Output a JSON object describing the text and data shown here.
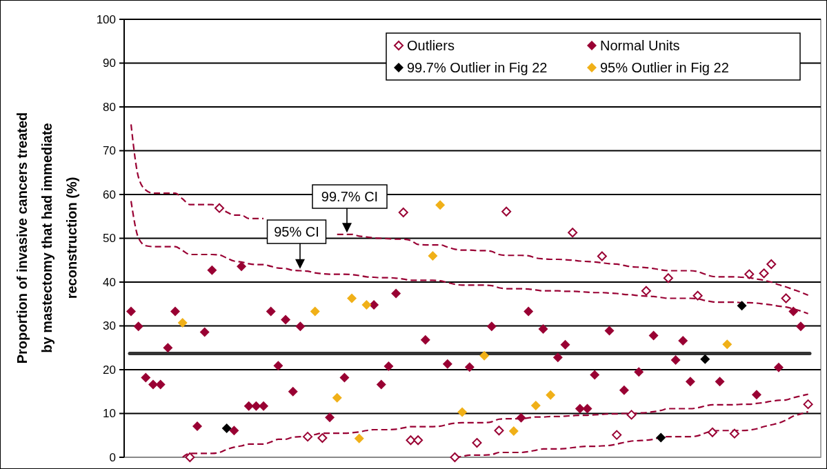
{
  "chart_data": {
    "type": "scatter",
    "ylabel": "Proportion of invasive cancers treated\nby mastectomy that had immediate\nreconstruction (%)",
    "categories": [
      null,
      null,
      null,
      null,
      null,
      null,
      null,
      null,
      null,
      null,
      null,
      null,
      null,
      null,
      null,
      null,
      null,
      null,
      null,
      null,
      null,
      null,
      null,
      null,
      null,
      null,
      null,
      null,
      null,
      null,
      null,
      null,
      null,
      null,
      null,
      null,
      null,
      null,
      null,
      null,
      null,
      null,
      null,
      null,
      null,
      null,
      null,
      null,
      null,
      null,
      null,
      null,
      null,
      null,
      null,
      null,
      null,
      null,
      null,
      null,
      null,
      null,
      null,
      null,
      null,
      null,
      null,
      null,
      null,
      null,
      null,
      null,
      null,
      null,
      null,
      null,
      null,
      null,
      null,
      null,
      null,
      null,
      null,
      null,
      null,
      null,
      null,
      null,
      null,
      null,
      null,
      null,
      null
    ],
    "ylim": [
      0,
      100
    ],
    "yticks": [
      0,
      10,
      20,
      30,
      40,
      50,
      60,
      70,
      80,
      90,
      100
    ],
    "grid": "y",
    "tick_labels": "y",
    "legend": "top right",
    "marker": "diamond",
    "series": [
      {
        "type": "line",
        "color": "#990033",
        "line_style": "dashed",
        "marker": "none",
        "values": [
          76,
          64,
          61,
          60.3,
          60.3,
          60.3,
          60.3,
          59,
          57.7,
          57.7,
          57.7,
          57.7,
          57,
          56,
          55.3,
          55.3,
          54.5,
          54.5,
          54.5,
          null,
          null,
          null,
          null,
          null,
          null,
          null,
          null,
          null,
          50.9,
          50.9,
          50.9,
          50.5,
          50.3,
          50.1,
          50,
          49.9,
          49.8,
          49.8,
          49.5,
          48.6,
          48.5,
          48.5,
          48.5,
          48,
          47.5,
          47.3,
          47.3,
          47.2,
          47.2,
          47,
          46.3,
          46.1,
          46.1,
          46.1,
          46,
          45.5,
          45.3,
          45.2,
          45.2,
          45.1,
          45,
          44.8,
          44.7,
          44.6,
          44.4,
          44.2,
          44.1,
          43.8,
          43.5,
          43.4,
          43.3,
          43.1,
          42.8,
          42.6,
          42.6,
          42.6,
          42.6,
          42.4,
          41.8,
          41.3,
          41.2,
          41.2,
          41.2,
          41.1,
          41,
          40.7,
          40.4,
          40,
          39.4,
          38.9,
          38.3,
          37.7,
          37
        ]
      },
      {
        "type": "line",
        "color": "#990033",
        "line_style": "dashed",
        "marker": "none",
        "values": [
          58.5,
          50.1,
          48.3,
          48.1,
          48.1,
          48.1,
          48.1,
          47.2,
          46.3,
          46.3,
          46.3,
          46.3,
          46.2,
          45.5,
          44.8,
          44.6,
          44.2,
          44,
          44,
          43.6,
          43.2,
          43.1,
          42.7,
          42.6,
          42.5,
          42.1,
          41.9,
          41.8,
          41.8,
          41.8,
          41.7,
          41.5,
          41.2,
          41.1,
          41,
          41,
          40.9,
          40.7,
          40.4,
          40.4,
          40.4,
          40.4,
          40.3,
          39.9,
          39.5,
          39.3,
          39.3,
          39.3,
          39.3,
          39.2,
          38.7,
          38.5,
          38.5,
          38.5,
          38.4,
          38.2,
          38,
          38,
          38,
          37.9,
          37.9,
          37.8,
          37.7,
          37.6,
          37.6,
          37.5,
          37.4,
          37.2,
          37.1,
          36.9,
          36.8,
          36.7,
          36.5,
          36.3,
          36.3,
          36.3,
          36.3,
          36.2,
          35.8,
          35.5,
          35.4,
          35.4,
          35.4,
          35.3,
          35.3,
          35.2,
          35,
          34.8,
          34.5,
          34.3,
          33.9,
          33.4,
          32.8
        ]
      },
      {
        "type": "line",
        "color": "#990033",
        "line_style": "dashed",
        "marker": "none",
        "values": [
          null,
          null,
          null,
          null,
          null,
          null,
          null,
          0,
          0.9,
          0.9,
          0.9,
          0.9,
          1.1,
          1.8,
          2.3,
          2.6,
          3,
          3,
          3,
          3.5,
          4.1,
          4.1,
          4.6,
          4.7,
          4.8,
          5.2,
          5.5,
          5.5,
          5.5,
          5.5,
          5.6,
          5.8,
          6.1,
          6.3,
          6.3,
          6.3,
          6.4,
          6.7,
          7,
          7,
          7,
          7,
          7.1,
          7.5,
          7.8,
          7.9,
          7.9,
          7.9,
          7.9,
          8.1,
          8.7,
          8.8,
          8.8,
          8.8,
          9,
          9.2,
          9.2,
          9.3,
          9.3,
          9.4,
          9.5,
          9.6,
          9.6,
          9.7,
          9.8,
          9.9,
          9.9,
          10,
          10,
          10.1,
          10.2,
          10.4,
          10.7,
          11.1,
          11.1,
          11.1,
          11.1,
          11.3,
          11.7,
          12,
          12,
          12,
          12,
          12.1,
          12.1,
          12.3,
          12.5,
          12.8,
          13,
          13.1,
          13.6,
          14,
          14.4
        ]
      },
      {
        "type": "line",
        "color": "#990033",
        "line_style": "dashed",
        "marker": "none",
        "values": [
          null,
          null,
          null,
          null,
          null,
          null,
          null,
          null,
          null,
          null,
          null,
          null,
          null,
          null,
          null,
          null,
          null,
          null,
          null,
          null,
          null,
          null,
          null,
          null,
          null,
          null,
          null,
          null,
          null,
          null,
          null,
          null,
          null,
          null,
          null,
          null,
          null,
          null,
          null,
          null,
          null,
          null,
          null,
          null,
          0,
          0.2,
          0.5,
          0.5,
          0.5,
          0.6,
          1.1,
          1.1,
          1.1,
          1.1,
          1.3,
          1.6,
          1.9,
          1.9,
          1.9,
          2,
          2.2,
          2.4,
          2.5,
          2.5,
          2.6,
          2.7,
          3,
          3.4,
          3.7,
          3.8,
          3.9,
          4.1,
          4.6,
          4.7,
          4.7,
          4.7,
          4.7,
          4.9,
          5.5,
          6,
          6.1,
          6.1,
          6.1,
          6.1,
          6.2,
          6.5,
          7,
          7.4,
          7.8,
          8.5,
          9.4,
          9.9,
          10.4
        ]
      },
      {
        "name": "Outliers",
        "color": "#990033",
        "marker": "diamond-open",
        "values": [
          null,
          null,
          null,
          null,
          null,
          null,
          null,
          null,
          0,
          null,
          null,
          null,
          56.9,
          null,
          null,
          null,
          null,
          null,
          null,
          null,
          null,
          null,
          null,
          null,
          4.7,
          null,
          4.4,
          null,
          null,
          null,
          null,
          null,
          null,
          null,
          null,
          null,
          null,
          55.9,
          3.9,
          3.9,
          null,
          null,
          null,
          null,
          0,
          null,
          null,
          3.3,
          null,
          null,
          6.1,
          56.1,
          null,
          null,
          null,
          null,
          null,
          null,
          null,
          null,
          51.3,
          null,
          null,
          null,
          45.9,
          null,
          5.1,
          null,
          9.7,
          null,
          38,
          null,
          null,
          40.9,
          null,
          null,
          null,
          36.9,
          null,
          5.7,
          null,
          null,
          5.4,
          null,
          41.8,
          null,
          42,
          44.1,
          null,
          36.3,
          null,
          null,
          12.1
        ]
      },
      {
        "name": "Normal Units",
        "color": "#990033",
        "values": [
          33.3,
          29.9,
          18.2,
          16.6,
          16.6,
          25,
          33.3,
          null,
          null,
          7.1,
          28.6,
          42.7,
          null,
          null,
          6.1,
          43.6,
          11.7,
          11.7,
          11.7,
          33.3,
          20.9,
          31.4,
          15,
          29.9,
          null,
          null,
          null,
          9.1,
          null,
          18.2,
          null,
          null,
          null,
          34.8,
          16.6,
          20.8,
          37.4,
          null,
          null,
          null,
          26.8,
          null,
          null,
          21.3,
          null,
          null,
          20.6,
          null,
          null,
          29.9,
          null,
          null,
          null,
          9,
          33.3,
          null,
          29.3,
          null,
          22.8,
          25.7,
          null,
          11.1,
          11.1,
          18.8,
          null,
          28.9,
          null,
          15.3,
          null,
          19.5,
          null,
          27.8,
          null,
          null,
          22.2,
          26.6,
          17.3,
          null,
          null,
          null,
          17.3,
          null,
          null,
          null,
          null,
          14.3,
          null,
          null,
          20.5,
          null,
          33.3,
          29.9,
          null
        ]
      },
      {
        "name": "99.7% Outlier in Fig 22",
        "color": "#000000",
        "values": [
          null,
          null,
          null,
          null,
          null,
          null,
          null,
          null,
          null,
          null,
          null,
          null,
          null,
          6.6,
          null,
          null,
          null,
          null,
          null,
          null,
          null,
          null,
          null,
          null,
          null,
          null,
          null,
          null,
          null,
          null,
          null,
          null,
          null,
          null,
          null,
          null,
          null,
          null,
          null,
          null,
          null,
          null,
          null,
          null,
          null,
          null,
          null,
          null,
          null,
          null,
          null,
          null,
          null,
          null,
          null,
          null,
          null,
          null,
          null,
          null,
          null,
          null,
          null,
          null,
          null,
          null,
          null,
          null,
          null,
          null,
          null,
          null,
          4.5,
          null,
          null,
          null,
          null,
          null,
          22.4,
          null,
          null,
          null,
          null,
          34.6,
          null,
          null,
          null,
          null,
          null,
          null,
          null,
          null,
          null
        ]
      },
      {
        "name": "95% Outlier in Fig 22",
        "color": "#f0b018",
        "values": [
          null,
          null,
          null,
          null,
          null,
          null,
          null,
          30.7,
          null,
          null,
          null,
          null,
          null,
          null,
          null,
          null,
          null,
          null,
          null,
          null,
          null,
          null,
          null,
          null,
          null,
          33.3,
          null,
          null,
          13.6,
          null,
          36.3,
          4.3,
          34.8,
          null,
          null,
          null,
          null,
          null,
          null,
          null,
          null,
          46,
          57.6,
          null,
          null,
          10.3,
          null,
          null,
          23.2,
          null,
          null,
          null,
          6,
          null,
          null,
          11.8,
          null,
          14.2,
          null,
          null,
          null,
          null,
          null,
          null,
          null,
          null,
          null,
          null,
          null,
          null,
          null,
          null,
          null,
          null,
          null,
          null,
          null,
          null,
          null,
          null,
          null,
          25.8,
          null,
          null,
          null,
          null,
          null,
          null,
          null,
          null,
          null,
          null,
          null
        ]
      }
    ],
    "ref_lines": [
      {
        "axis": "y",
        "value": 23.7,
        "color": "#333333"
      }
    ],
    "annotations": [
      {
        "text": "99.7% CI",
        "y": 51
      },
      {
        "text": "95% CI",
        "y": 42.7
      }
    ]
  }
}
